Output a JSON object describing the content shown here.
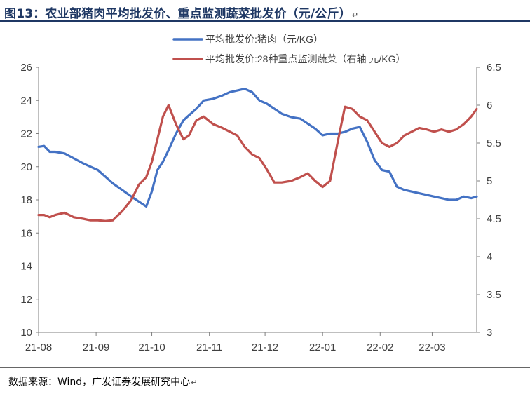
{
  "figure": {
    "title": "图13：农业部猪肉平均批发价、重点监测蔬菜批发价（元/公斤）",
    "source": "数据来源：Wind，广发证券发展研究中心",
    "return_mark": "↵"
  },
  "chart_data": {
    "type": "line",
    "title": "",
    "xlabel": "",
    "ylabel": "",
    "categories": [
      "21-08",
      "21-09",
      "21-10",
      "21-11",
      "21-12",
      "22-01",
      "22-02",
      "22-03"
    ],
    "x_range": [
      "2021-08-01",
      "2022-03-25"
    ],
    "left_axis": {
      "ylim": [
        10,
        26
      ],
      "ticks": [
        10,
        12,
        14,
        16,
        18,
        20,
        22,
        24,
        26
      ]
    },
    "right_axis": {
      "ylim": [
        3,
        6.5
      ],
      "ticks": [
        3,
        3.5,
        4,
        4.5,
        5,
        5.5,
        6,
        6.5
      ],
      "tick_labels": [
        "3",
        "3.5",
        "4",
        "4.5",
        "5",
        "5.5",
        "6",
        "6.5"
      ]
    },
    "grid": false,
    "legend_position": "top-center",
    "series": [
      {
        "name": "平均批发价:猪肉（元/KG）",
        "axis": "left",
        "color": "#4472c4",
        "x": [
          "2021-08-01",
          "2021-08-04",
          "2021-08-07",
          "2021-08-10",
          "2021-08-15",
          "2021-08-20",
          "2021-08-25",
          "2021-08-29",
          "2021-09-02",
          "2021-09-06",
          "2021-09-10",
          "2021-09-15",
          "2021-09-20",
          "2021-09-24",
          "2021-09-28",
          "2021-10-01",
          "2021-10-04",
          "2021-10-07",
          "2021-10-10",
          "2021-10-14",
          "2021-10-18",
          "2021-10-21",
          "2021-10-25",
          "2021-10-29",
          "2021-11-03",
          "2021-11-08",
          "2021-11-12",
          "2021-11-16",
          "2021-11-20",
          "2021-11-24",
          "2021-11-28",
          "2021-12-02",
          "2021-12-06",
          "2021-12-10",
          "2021-12-15",
          "2021-12-20",
          "2021-12-24",
          "2021-12-28",
          "2022-01-01",
          "2022-01-05",
          "2022-01-09",
          "2022-01-13",
          "2022-01-17",
          "2022-01-21",
          "2022-01-25",
          "2022-01-29",
          "2022-02-02",
          "2022-02-06",
          "2022-02-10",
          "2022-02-14",
          "2022-02-18",
          "2022-02-22",
          "2022-02-26",
          "2022-03-02",
          "2022-03-06",
          "2022-03-10",
          "2022-03-14",
          "2022-03-18",
          "2022-03-22",
          "2022-03-25"
        ],
        "values": [
          21.2,
          21.25,
          20.9,
          20.9,
          20.8,
          20.5,
          20.2,
          20.0,
          19.8,
          19.4,
          19.0,
          18.6,
          18.2,
          17.9,
          17.6,
          18.5,
          19.8,
          20.3,
          21.0,
          22.0,
          22.8,
          23.1,
          23.5,
          24.0,
          24.1,
          24.3,
          24.5,
          24.6,
          24.7,
          24.5,
          24.0,
          23.8,
          23.5,
          23.2,
          23.0,
          22.9,
          22.6,
          22.3,
          21.9,
          22.0,
          22.0,
          22.1,
          22.3,
          22.4,
          21.5,
          20.4,
          19.8,
          19.7,
          18.8,
          18.6,
          18.5,
          18.4,
          18.3,
          18.2,
          18.1,
          18.0,
          18.0,
          18.2,
          18.1,
          18.2
        ]
      },
      {
        "name": "平均批发价:28种重点监测蔬菜（右轴 元/KG）",
        "axis": "right",
        "color": "#c0504d",
        "x": [
          "2021-08-01",
          "2021-08-04",
          "2021-08-07",
          "2021-08-10",
          "2021-08-15",
          "2021-08-20",
          "2021-08-25",
          "2021-08-29",
          "2021-09-02",
          "2021-09-06",
          "2021-09-10",
          "2021-09-15",
          "2021-09-20",
          "2021-09-24",
          "2021-09-28",
          "2021-10-01",
          "2021-10-04",
          "2021-10-07",
          "2021-10-10",
          "2021-10-14",
          "2021-10-18",
          "2021-10-21",
          "2021-10-25",
          "2021-10-29",
          "2021-11-03",
          "2021-11-08",
          "2021-11-12",
          "2021-11-16",
          "2021-11-20",
          "2021-11-24",
          "2021-11-28",
          "2021-12-02",
          "2021-12-06",
          "2021-12-10",
          "2021-12-15",
          "2021-12-20",
          "2021-12-24",
          "2021-12-28",
          "2022-01-01",
          "2022-01-05",
          "2022-01-09",
          "2022-01-13",
          "2022-01-17",
          "2022-01-21",
          "2022-01-25",
          "2022-01-29",
          "2022-02-02",
          "2022-02-06",
          "2022-02-10",
          "2022-02-14",
          "2022-02-18",
          "2022-02-22",
          "2022-02-26",
          "2022-03-02",
          "2022-03-06",
          "2022-03-10",
          "2022-03-14",
          "2022-03-18",
          "2022-03-22",
          "2022-03-25"
        ],
        "values": [
          4.55,
          4.55,
          4.52,
          4.55,
          4.58,
          4.52,
          4.5,
          4.48,
          4.48,
          4.47,
          4.48,
          4.6,
          4.75,
          4.95,
          5.05,
          5.25,
          5.55,
          5.85,
          6.0,
          5.75,
          5.55,
          5.6,
          5.8,
          5.85,
          5.75,
          5.7,
          5.65,
          5.6,
          5.45,
          5.35,
          5.3,
          5.15,
          4.98,
          4.98,
          5.0,
          5.05,
          5.1,
          5.0,
          4.92,
          5.0,
          5.5,
          5.98,
          5.95,
          5.85,
          5.8,
          5.65,
          5.5,
          5.45,
          5.5,
          5.6,
          5.65,
          5.7,
          5.68,
          5.65,
          5.68,
          5.65,
          5.68,
          5.75,
          5.85,
          5.95
        ]
      }
    ]
  }
}
